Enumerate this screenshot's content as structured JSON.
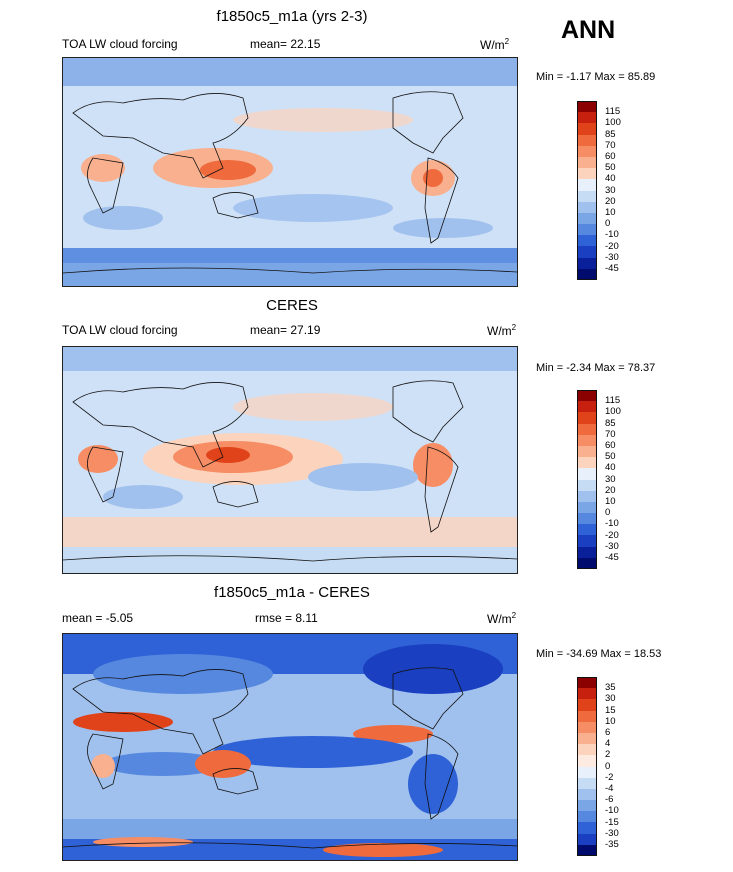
{
  "header": {
    "season": "ANN"
  },
  "panels": [
    {
      "title": "f1850c5_m1a (yrs 2-3)",
      "left_label": "TOA LW cloud forcing",
      "stat_label": "mean=",
      "stat_value": "22.15",
      "units": "W/m",
      "units_sup": "2",
      "minmax_text": "Min = -1.17 Max = 85.89",
      "colorbar_levels": [
        "115",
        "100",
        "85",
        "70",
        "60",
        "50",
        "40",
        "30",
        "20",
        "10",
        "0",
        "-10",
        "-20",
        "-30",
        "-45"
      ]
    },
    {
      "title": "CERES",
      "left_label": "TOA LW cloud forcing",
      "stat_label": "mean=",
      "stat_value": "27.19",
      "units": "W/m",
      "units_sup": "2",
      "minmax_text": "Min = -2.34 Max = 78.37",
      "colorbar_levels": [
        "115",
        "100",
        "85",
        "70",
        "60",
        "50",
        "40",
        "30",
        "20",
        "10",
        "0",
        "-10",
        "-20",
        "-30",
        "-45"
      ]
    },
    {
      "title": "f1850c5_m1a - CERES",
      "left_label": "mean = -5.05",
      "stat_label": "rmse =",
      "stat_value": "8.11",
      "units": "W/m",
      "units_sup": "2",
      "minmax_text": "Min = -34.69 Max = 18.53",
      "colorbar_levels": [
        "35",
        "30",
        "15",
        "10",
        "6",
        "4",
        "2",
        "0",
        "-2",
        "-4",
        "-6",
        "-10",
        "-15",
        "-30",
        "-35"
      ]
    }
  ],
  "colors": {
    "main_scale": [
      "#8b0000",
      "#c8200e",
      "#e0431a",
      "#ef6a3c",
      "#f68d64",
      "#f9b08e",
      "#fcd3bd",
      "#e8f0fb",
      "#c6dcf5",
      "#a0c1ee",
      "#7ba6e6",
      "#5588de",
      "#2f62d6",
      "#1a3fc0",
      "#0a1f9a",
      "#000b6e"
    ],
    "diff_scale": [
      "#8b0000",
      "#c8200e",
      "#e0431a",
      "#ef6a3c",
      "#f68d64",
      "#f9b08e",
      "#fcd3bd",
      "#fdebe1",
      "#e8f0fb",
      "#c6dcf5",
      "#a0c1ee",
      "#7ba6e6",
      "#5588de",
      "#2f62d6",
      "#1a3fc0",
      "#000b6e"
    ]
  },
  "chart_data": [
    {
      "type": "heatmap",
      "title": "f1850c5_m1a (yrs 2-3)",
      "subtitle": "TOA LW cloud forcing",
      "units": "W/m2",
      "mean": 22.15,
      "min": -1.17,
      "max": 85.89,
      "levels": [
        -45,
        -30,
        -20,
        -10,
        0,
        10,
        20,
        30,
        40,
        50,
        60,
        70,
        85,
        100,
        115
      ]
    },
    {
      "type": "heatmap",
      "title": "CERES",
      "subtitle": "TOA LW cloud forcing",
      "units": "W/m2",
      "mean": 27.19,
      "min": -2.34,
      "max": 78.37,
      "levels": [
        -45,
        -30,
        -20,
        -10,
        0,
        10,
        20,
        30,
        40,
        50,
        60,
        70,
        85,
        100,
        115
      ]
    },
    {
      "type": "heatmap",
      "title": "f1850c5_m1a - CERES",
      "units": "W/m2",
      "mean": -5.05,
      "rmse": 8.11,
      "min": -34.69,
      "max": 18.53,
      "levels": [
        -35,
        -30,
        -15,
        -10,
        -6,
        -4,
        -2,
        0,
        2,
        4,
        6,
        10,
        15,
        30,
        35
      ]
    }
  ]
}
